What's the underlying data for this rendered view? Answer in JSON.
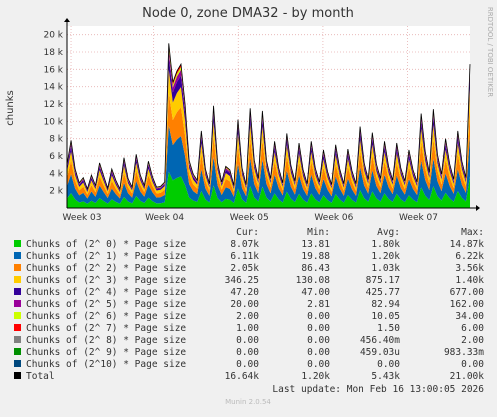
{
  "title": "Node 0, zone DMA32 - by month",
  "ylabel": "chunks",
  "watermark": "RRDTOOL / TOBI OETIKER",
  "footer": "Munin 2.0.54",
  "last_update": "Last update:  Mon Feb 16 13:00:05 2026",
  "legend_header": {
    "cur": "Cur:",
    "min": "Min:",
    "avg": "Avg:",
    "max": "Max:"
  },
  "legend": [
    {
      "color": "#00cc00",
      "label": "Chunks of (2^ 0) * Page size",
      "cur": "8.07k",
      "min": "13.81",
      "avg": "1.80k",
      "max": "14.87k"
    },
    {
      "color": "#0066b3",
      "label": "Chunks of (2^ 1) * Page size",
      "cur": "6.11k",
      "min": "19.88",
      "avg": "1.20k",
      "max": "6.22k"
    },
    {
      "color": "#ff8000",
      "label": "Chunks of (2^ 2) * Page size",
      "cur": "2.05k",
      "min": "86.43",
      "avg": "1.03k",
      "max": "3.56k"
    },
    {
      "color": "#ffcc00",
      "label": "Chunks of (2^ 3) * Page size",
      "cur": "346.25",
      "min": "130.08",
      "avg": "875.17",
      "max": "1.40k"
    },
    {
      "color": "#330099",
      "label": "Chunks of (2^ 4) * Page size",
      "cur": "47.20",
      "min": "47.00",
      "avg": "425.77",
      "max": "677.00"
    },
    {
      "color": "#990099",
      "label": "Chunks of (2^ 5) * Page size",
      "cur": "20.00",
      "min": "2.81",
      "avg": "82.94",
      "max": "162.00"
    },
    {
      "color": "#ccff00",
      "label": "Chunks of (2^ 6) * Page size",
      "cur": "2.00",
      "min": "0.00",
      "avg": "10.05",
      "max": "34.00"
    },
    {
      "color": "#ff0000",
      "label": "Chunks of (2^ 7) * Page size",
      "cur": "1.00",
      "min": "0.00",
      "avg": "1.50",
      "max": "6.00"
    },
    {
      "color": "#808080",
      "label": "Chunks of (2^ 8) * Page size",
      "cur": "0.00",
      "min": "0.00",
      "avg": "456.40m",
      "max": "2.00"
    },
    {
      "color": "#008f00",
      "label": "Chunks of (2^ 9) * Page size",
      "cur": "0.00",
      "min": "0.00",
      "avg": "459.03u",
      "max": "983.33m"
    },
    {
      "color": "#00487d",
      "label": "Chunks of (2^10) * Page size",
      "cur": "0.00",
      "min": "0.00",
      "avg": "0.00",
      "max": "0.00"
    },
    {
      "color": "#000000",
      "label": "Total",
      "cur": "16.64k",
      "min": "1.20k",
      "avg": "5.43k",
      "max": "21.00k"
    }
  ],
  "chart_data": {
    "type": "area",
    "stacked": true,
    "ylabel": "chunks",
    "ylim": [
      0,
      21000
    ],
    "yticks": [
      2000,
      4000,
      6000,
      8000,
      10000,
      12000,
      14000,
      16000,
      18000,
      20000
    ],
    "ytick_labels": [
      "2 k",
      "4 k",
      "6 k",
      "8 k",
      "10 k",
      "12 k",
      "14 k",
      "16 k",
      "18 k",
      "20 k"
    ],
    "xticks": [
      "Week 03",
      "Week 04",
      "Week 05",
      "Week 06",
      "Week 07"
    ],
    "grid": true,
    "total_envelope": [
      5000,
      7800,
      4500,
      2900,
      3500,
      2200,
      3800,
      2600,
      5200,
      3700,
      2300,
      4500,
      3200,
      2200,
      5800,
      3400,
      2400,
      6200,
      3800,
      2600,
      5400,
      3600,
      2400,
      2500,
      3000,
      19000,
      14500,
      15800,
      16600,
      12000,
      5500,
      3900,
      3200,
      8900,
      4500,
      2800,
      11800,
      5200,
      3000,
      4800,
      4400,
      2600,
      10200,
      4600,
      2700,
      11500,
      5500,
      3400,
      11200,
      5500,
      3400,
      7700,
      4600,
      2900,
      8600,
      4900,
      3100,
      7500,
      4400,
      2800,
      7700,
      4600,
      3000,
      6700,
      4200,
      2700,
      7300,
      4500,
      2800,
      6800,
      4300,
      2800,
      9400,
      5200,
      3300,
      8700,
      5100,
      3400,
      7700,
      4800,
      3200,
      7500,
      4600,
      3100,
      6700,
      4400,
      3000,
      10900,
      6500,
      4100,
      11400,
      6200,
      3900,
      8000,
      5100,
      3300,
      8900,
      5400,
      3500,
      16600
    ],
    "series_share": [
      0.22,
      0.28,
      0.2,
      0.14,
      0.08,
      0.04,
      0.02,
      0.02
    ]
  }
}
